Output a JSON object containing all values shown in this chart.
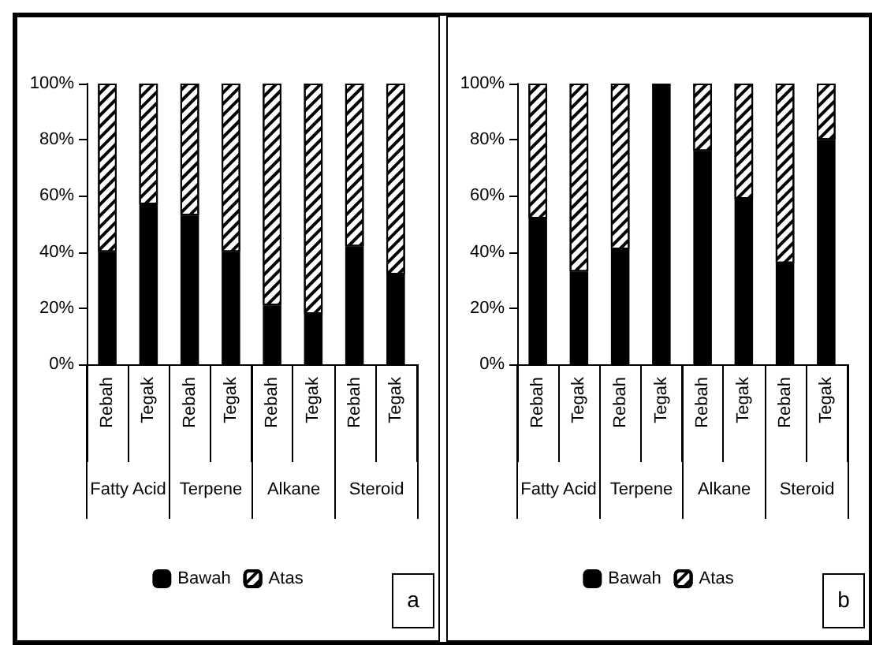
{
  "chart_data": [
    {
      "type": "bar",
      "stacked": true,
      "categories": [
        "Rebah",
        "Tegak",
        "Rebah",
        "Tegak",
        "Rebah",
        "Tegak",
        "Rebah",
        "Tegak"
      ],
      "series": [
        {
          "name": "Bawah",
          "color": "#000000",
          "values": [
            40,
            57,
            53,
            40,
            21,
            18,
            42,
            32
          ]
        },
        {
          "name": "Atas",
          "color": "#ffffff",
          "values": [
            60,
            43,
            47,
            60,
            79,
            82,
            58,
            68
          ]
        }
      ],
      "ylim": [
        0,
        100
      ],
      "yticks": [
        {
          "value": 0,
          "label": "0%"
        },
        {
          "value": 20,
          "label": "20%"
        },
        {
          "value": 40,
          "label": "40%"
        },
        {
          "value": 60,
          "label": "60%"
        },
        {
          "value": 80,
          "label": "80%"
        },
        {
          "value": 100,
          "label": "100%"
        }
      ],
      "annotations": [
        "Fatty Acid",
        "Terpene",
        "Alkane",
        "Steroid",
        "a"
      ],
      "grid": false,
      "legend": "bottom"
    },
    {
      "type": "bar",
      "stacked": true,
      "categories": [
        "Rebah",
        "Tegak",
        "Rebah",
        "Tegak",
        "Rebah",
        "Tegak",
        "Rebah",
        "Tegak"
      ],
      "series": [
        {
          "name": "Bawah",
          "color": "#000000",
          "values": [
            52,
            33,
            41,
            100,
            76,
            59,
            36,
            80
          ]
        },
        {
          "name": "Atas",
          "color": "#ffffff",
          "values": [
            48,
            67,
            59,
            0,
            24,
            41,
            64,
            20
          ]
        }
      ],
      "ylim": [
        0,
        100
      ],
      "yticks": [
        {
          "value": 0,
          "label": "0%"
        },
        {
          "value": 20,
          "label": "20%"
        },
        {
          "value": 40,
          "label": "40%"
        },
        {
          "value": 60,
          "label": "60%"
        },
        {
          "value": 80,
          "label": "80%"
        },
        {
          "value": 100,
          "label": "100%"
        }
      ],
      "annotations": [
        "Fatty Acid",
        "Terpene",
        "Alkane",
        "Steroid",
        "b"
      ],
      "grid": false,
      "legend": "bottom"
    }
  ]
}
